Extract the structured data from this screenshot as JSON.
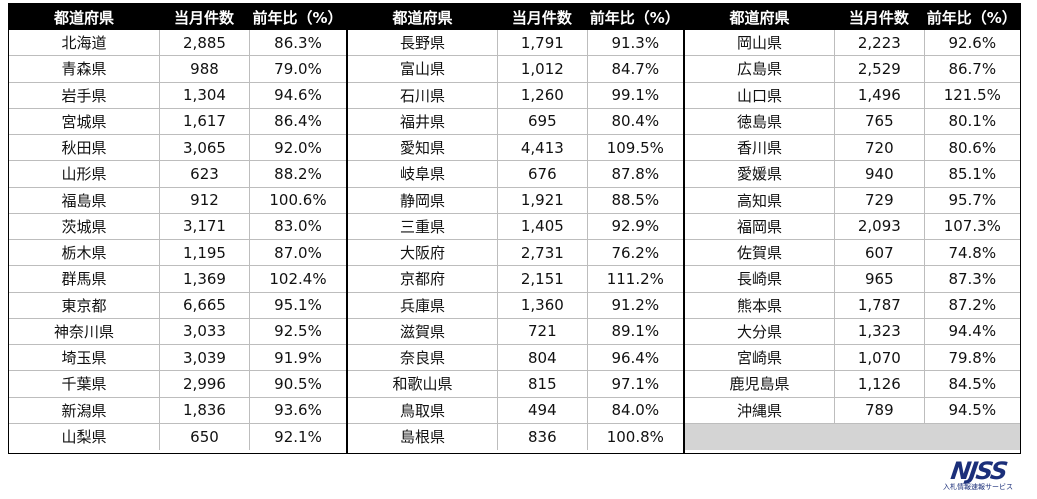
{
  "headers": {
    "prefecture": "都道府県",
    "count": "当月件数",
    "ratio": "前年比（%）"
  },
  "groups": [
    {
      "rows": [
        {
          "prefecture": "北海道",
          "count": "2,885",
          "ratio": "86.3%"
        },
        {
          "prefecture": "青森県",
          "count": "988",
          "ratio": "79.0%"
        },
        {
          "prefecture": "岩手県",
          "count": "1,304",
          "ratio": "94.6%"
        },
        {
          "prefecture": "宮城県",
          "count": "1,617",
          "ratio": "86.4%"
        },
        {
          "prefecture": "秋田県",
          "count": "3,065",
          "ratio": "92.0%"
        },
        {
          "prefecture": "山形県",
          "count": "623",
          "ratio": "88.2%"
        },
        {
          "prefecture": "福島県",
          "count": "912",
          "ratio": "100.6%"
        },
        {
          "prefecture": "茨城県",
          "count": "3,171",
          "ratio": "83.0%"
        },
        {
          "prefecture": "栃木県",
          "count": "1,195",
          "ratio": "87.0%"
        },
        {
          "prefecture": "群馬県",
          "count": "1,369",
          "ratio": "102.4%"
        },
        {
          "prefecture": "東京都",
          "count": "6,665",
          "ratio": "95.1%"
        },
        {
          "prefecture": "神奈川県",
          "count": "3,033",
          "ratio": "92.5%"
        },
        {
          "prefecture": "埼玉県",
          "count": "3,039",
          "ratio": "91.9%"
        },
        {
          "prefecture": "千葉県",
          "count": "2,996",
          "ratio": "90.5%"
        },
        {
          "prefecture": "新潟県",
          "count": "1,836",
          "ratio": "93.6%"
        },
        {
          "prefecture": "山梨県",
          "count": "650",
          "ratio": "92.1%"
        }
      ]
    },
    {
      "rows": [
        {
          "prefecture": "長野県",
          "count": "1,791",
          "ratio": "91.3%"
        },
        {
          "prefecture": "富山県",
          "count": "1,012",
          "ratio": "84.7%"
        },
        {
          "prefecture": "石川県",
          "count": "1,260",
          "ratio": "99.1%"
        },
        {
          "prefecture": "福井県",
          "count": "695",
          "ratio": "80.4%"
        },
        {
          "prefecture": "愛知県",
          "count": "4,413",
          "ratio": "109.5%"
        },
        {
          "prefecture": "岐阜県",
          "count": "676",
          "ratio": "87.8%"
        },
        {
          "prefecture": "静岡県",
          "count": "1,921",
          "ratio": "88.5%"
        },
        {
          "prefecture": "三重県",
          "count": "1,405",
          "ratio": "92.9%"
        },
        {
          "prefecture": "大阪府",
          "count": "2,731",
          "ratio": "76.2%"
        },
        {
          "prefecture": "京都府",
          "count": "2,151",
          "ratio": "111.2%"
        },
        {
          "prefecture": "兵庫県",
          "count": "1,360",
          "ratio": "91.2%"
        },
        {
          "prefecture": "滋賀県",
          "count": "721",
          "ratio": "89.1%"
        },
        {
          "prefecture": "奈良県",
          "count": "804",
          "ratio": "96.4%"
        },
        {
          "prefecture": "和歌山県",
          "count": "815",
          "ratio": "97.1%"
        },
        {
          "prefecture": "鳥取県",
          "count": "494",
          "ratio": "84.0%"
        },
        {
          "prefecture": "島根県",
          "count": "836",
          "ratio": "100.8%"
        }
      ]
    },
    {
      "rows": [
        {
          "prefecture": "岡山県",
          "count": "2,223",
          "ratio": "92.6%"
        },
        {
          "prefecture": "広島県",
          "count": "2,529",
          "ratio": "86.7%"
        },
        {
          "prefecture": "山口県",
          "count": "1,496",
          "ratio": "121.5%"
        },
        {
          "prefecture": "徳島県",
          "count": "765",
          "ratio": "80.1%"
        },
        {
          "prefecture": "香川県",
          "count": "720",
          "ratio": "80.6%"
        },
        {
          "prefecture": "愛媛県",
          "count": "940",
          "ratio": "85.1%"
        },
        {
          "prefecture": "高知県",
          "count": "729",
          "ratio": "95.7%"
        },
        {
          "prefecture": "福岡県",
          "count": "2,093",
          "ratio": "107.3%"
        },
        {
          "prefecture": "佐賀県",
          "count": "607",
          "ratio": "74.8%"
        },
        {
          "prefecture": "長崎県",
          "count": "965",
          "ratio": "87.3%"
        },
        {
          "prefecture": "熊本県",
          "count": "1,787",
          "ratio": "87.2%"
        },
        {
          "prefecture": "大分県",
          "count": "1,323",
          "ratio": "94.4%"
        },
        {
          "prefecture": "宮崎県",
          "count": "1,070",
          "ratio": "79.8%"
        },
        {
          "prefecture": "鹿児島県",
          "count": "1,126",
          "ratio": "84.5%"
        },
        {
          "prefecture": "沖縄県",
          "count": "789",
          "ratio": "94.5%"
        },
        {
          "prefecture": "",
          "count": "",
          "ratio": ""
        }
      ]
    }
  ],
  "logo": {
    "mark": "NJSS",
    "subtitle": "入札情報速報サービス",
    "color": "#1b2f7a"
  }
}
